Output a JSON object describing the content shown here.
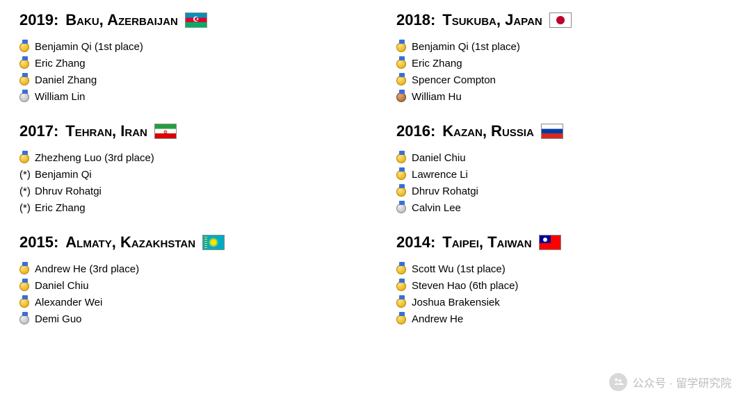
{
  "columns": [
    [
      {
        "title_year": "2019:",
        "title_place": "Baku, Azerbaijan",
        "flag": "az",
        "rows": [
          {
            "medal": "gold",
            "text": "Benjamin Qi (1st place)"
          },
          {
            "medal": "gold",
            "text": "Eric Zhang"
          },
          {
            "medal": "gold",
            "text": "Daniel Zhang"
          },
          {
            "medal": "silver",
            "text": "William Lin"
          }
        ]
      },
      {
        "title_year": "2017:",
        "title_place": "Tehran, Iran",
        "flag": "ir",
        "rows": [
          {
            "medal": "gold",
            "text": "Zhezheng Luo (3rd place)"
          },
          {
            "medal": "none",
            "prefix": "(*) ",
            "text": "Benjamin Qi"
          },
          {
            "medal": "none",
            "prefix": "(*) ",
            "text": "Dhruv Rohatgi"
          },
          {
            "medal": "none",
            "prefix": "(*) ",
            "text": "Eric Zhang"
          }
        ]
      },
      {
        "title_year": "2015:",
        "title_place": "Almaty, Kazakhstan",
        "flag": "kz",
        "rows": [
          {
            "medal": "gold",
            "text": "Andrew He (3rd place)"
          },
          {
            "medal": "gold",
            "text": "Daniel Chiu"
          },
          {
            "medal": "gold",
            "text": "Alexander Wei"
          },
          {
            "medal": "silver",
            "text": "Demi Guo"
          }
        ]
      }
    ],
    [
      {
        "title_year": "2018:",
        "title_place": "Tsukuba, Japan",
        "flag": "jp",
        "rows": [
          {
            "medal": "gold",
            "text": "Benjamin Qi (1st place)"
          },
          {
            "medal": "gold",
            "text": "Eric Zhang"
          },
          {
            "medal": "gold",
            "text": "Spencer Compton"
          },
          {
            "medal": "bronze",
            "text": "William Hu"
          }
        ]
      },
      {
        "title_year": "2016:",
        "title_place": "Kazan, Russia",
        "flag": "ru",
        "rows": [
          {
            "medal": "gold",
            "text": "Daniel Chiu"
          },
          {
            "medal": "gold",
            "text": "Lawrence Li"
          },
          {
            "medal": "gold",
            "text": "Dhruv Rohatgi"
          },
          {
            "medal": "silver",
            "text": "Calvin Lee"
          }
        ]
      },
      {
        "title_year": "2014:",
        "title_place": "Taipei, Taiwan",
        "flag": "tw",
        "rows": [
          {
            "medal": "gold",
            "text": "Scott Wu (1st place)"
          },
          {
            "medal": "gold",
            "text": "Steven Hao (6th place)"
          },
          {
            "medal": "gold",
            "text": "Joshua Brakensiek"
          },
          {
            "medal": "gold",
            "text": "Andrew He"
          }
        ]
      }
    ]
  ],
  "flags": {
    "az": {
      "bg": "linear-gradient(to bottom,#0092bc 0 33%,#e4002b 33% 66%,#00af66 66% 100%)",
      "center": "moon-star"
    },
    "jp": {
      "bg": "#ffffff",
      "center": "red-circle"
    },
    "ir": {
      "bg": "linear-gradient(to bottom,#239f40 0 33%,#ffffff 33% 66%,#da0000 66% 100%)",
      "center": "ir-emblem"
    },
    "ru": {
      "bg": "linear-gradient(to bottom,#ffffff 0 33%,#0039a6 33% 66%,#d52b1e 66% 100%)"
    },
    "kz": {
      "bg": "#00abc2",
      "center": "kz-sun"
    },
    "tw": {
      "bg": "#fe0000",
      "center": "tw-canton"
    }
  },
  "watermark": "公众号 · 留学研究院"
}
